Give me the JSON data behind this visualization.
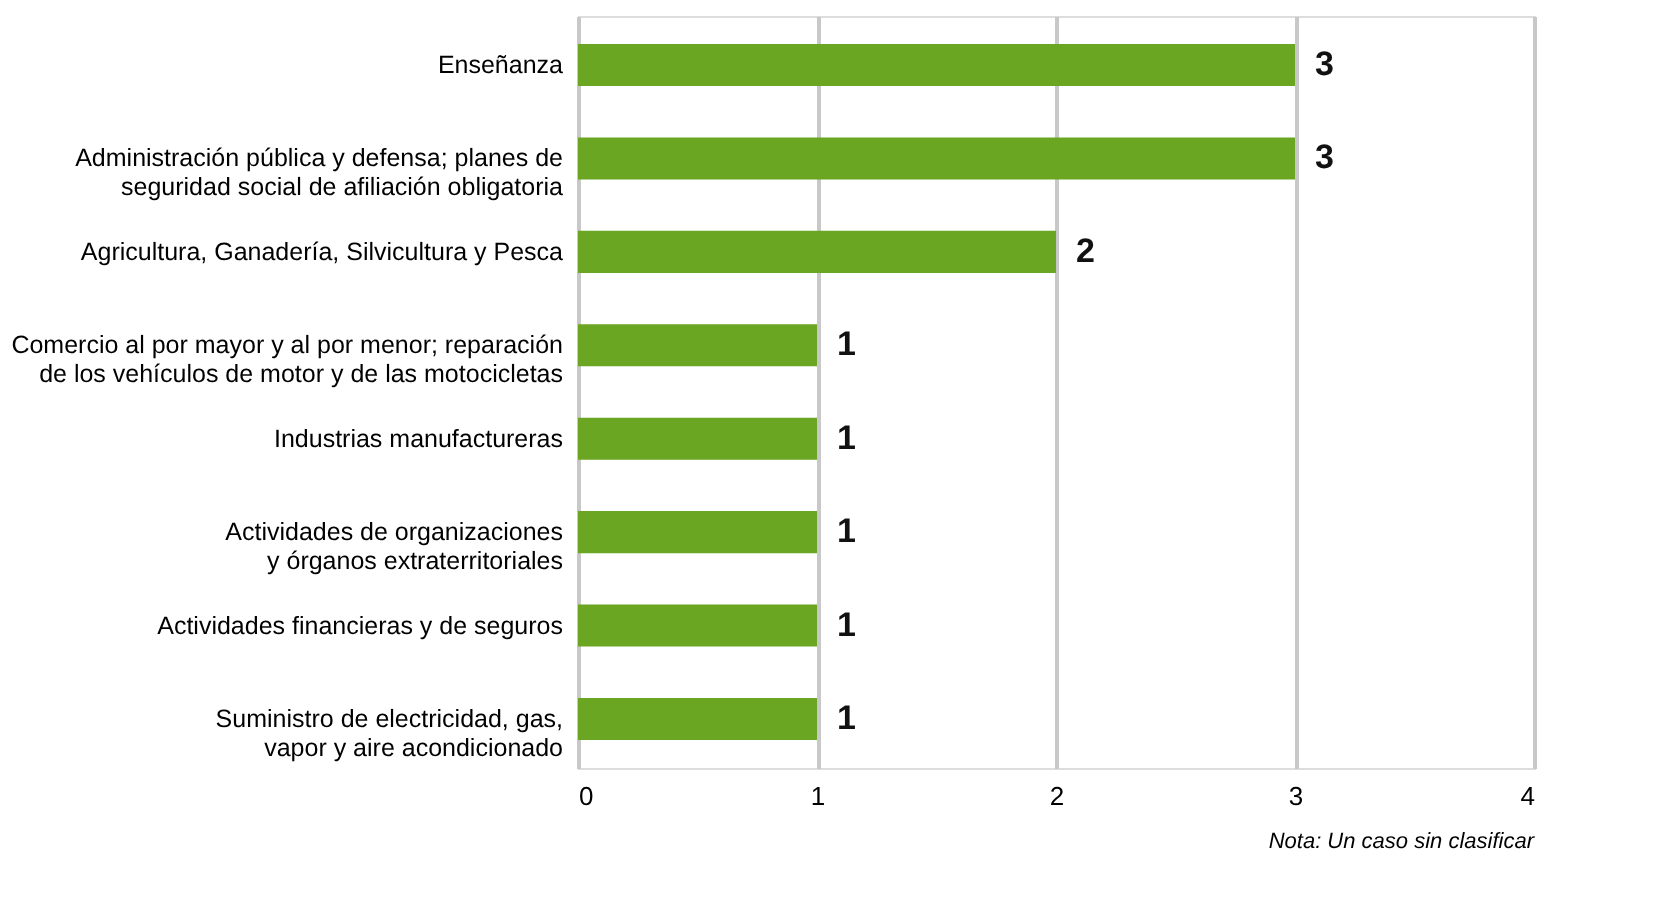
{
  "chart_data": {
    "type": "bar",
    "orientation": "horizontal",
    "categories": [
      "Enseñanza",
      "Administración pública y defensa; planes de\nseguridad social de afiliación obligatoria",
      "Agricultura, Ganadería, Silvicultura y Pesca",
      "Comercio al por mayor y al por menor; reparación\nde los vehículos de motor y de las motocicletas",
      "Industrias manufactureras",
      "Actividades de organizaciones\ny órganos extraterritoriales",
      "Actividades financieras y de seguros",
      "Suministro de electricidad, gas,\nvapor y aire acondicionado"
    ],
    "values": [
      3,
      3,
      2,
      1,
      1,
      1,
      1,
      1
    ],
    "color": "#6aa621",
    "xlim": [
      0,
      4
    ],
    "xticks": [
      0,
      1,
      2,
      3,
      4
    ],
    "grid": "x",
    "data_labels": true,
    "annotations": [
      "Nota: Un caso sin clasificar"
    ]
  }
}
